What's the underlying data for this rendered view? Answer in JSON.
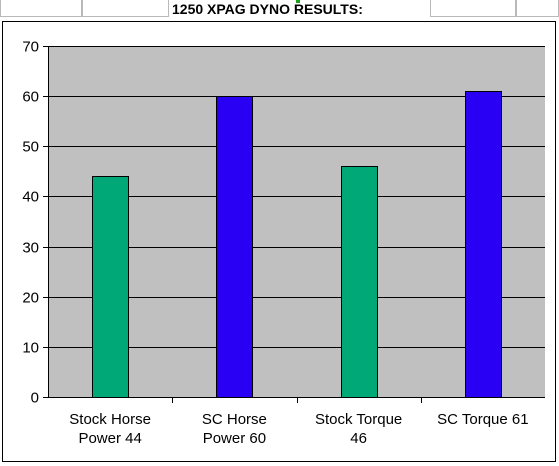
{
  "sheet": {
    "title": "1250 XPAG DYNO RESULTS:"
  },
  "colors": {
    "plot_background": "#c0c0c0",
    "stock_bar": "#00a878",
    "sc_bar": "#2a00f5",
    "gridline": "#000000"
  },
  "chart_data": {
    "type": "bar",
    "title": "",
    "xlabel": "",
    "ylabel": "",
    "ylim": [
      0,
      70
    ],
    "yticks": [
      0,
      10,
      20,
      30,
      40,
      50,
      60,
      70
    ],
    "grid": true,
    "categories": [
      [
        "Stock Horse",
        "Power 44"
      ],
      [
        "SC Horse",
        "Power 60"
      ],
      [
        "Stock Torque",
        "46"
      ],
      [
        "SC Torque 61"
      ]
    ],
    "values": [
      44,
      60,
      46,
      61
    ],
    "bar_colors": [
      "#00a878",
      "#2a00f5",
      "#00a878",
      "#2a00f5"
    ]
  }
}
